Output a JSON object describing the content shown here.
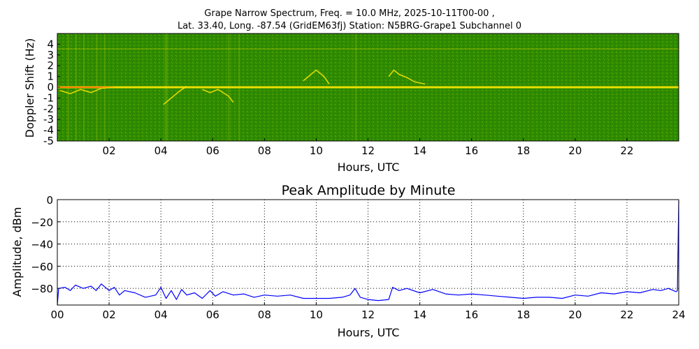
{
  "chart_data": [
    {
      "type": "heatmap",
      "title_line1": "Grape Narrow Spectrum, Freq. = 10.0 MHz, 2025-10-11T00-00 ,",
      "title_line2": "Lat.  33.40, Long. -87.54 (GridEM63fj) Station: N5BRG-Grape1 Subchannel 0",
      "xlabel": "Hours, UTC",
      "ylabel": "Doppler Shift (Hz)",
      "xlim": [
        0,
        24
      ],
      "ylim": [
        -5,
        5
      ],
      "x_ticks": [
        2,
        4,
        6,
        8,
        10,
        12,
        14,
        16,
        18,
        20,
        22
      ],
      "x_tick_labels": [
        "02",
        "04",
        "06",
        "08",
        "10",
        "12",
        "14",
        "16",
        "18",
        "20",
        "22"
      ],
      "y_ticks": [
        4,
        3,
        2,
        1,
        0,
        -1,
        -2,
        -3,
        -4,
        -5
      ],
      "y_tick_labels": [
        "4",
        "3",
        "2",
        "1",
        "0",
        "-1",
        "-2",
        "-3",
        "-4",
        "-5"
      ],
      "colors": {
        "background": "#2e8a00",
        "mid": "#6aaa00",
        "trace": "#ffe600",
        "peak": "#ff6a00"
      },
      "carrier_hz": 0,
      "traces": [
        {
          "x": [
            9.5,
            9.8,
            10.0,
            10.3,
            10.5
          ],
          "y": [
            0.6,
            1.2,
            1.6,
            1.0,
            0.3
          ]
        },
        {
          "x": [
            12.8,
            13.0,
            13.2,
            13.5,
            13.8,
            14.2
          ],
          "y": [
            1.0,
            1.6,
            1.2,
            0.9,
            0.5,
            0.3
          ]
        },
        {
          "x": [
            4.1,
            4.4,
            4.7,
            5.0
          ],
          "y": [
            -1.6,
            -1.0,
            -0.4,
            0.1
          ]
        },
        {
          "x": [
            5.6,
            5.9,
            6.2,
            6.6,
            6.8
          ],
          "y": [
            -0.2,
            -0.5,
            -0.2,
            -0.8,
            -1.4
          ]
        },
        {
          "x": [
            0.1,
            0.5,
            0.9,
            1.3,
            1.7,
            2.2
          ],
          "y": [
            -0.3,
            -0.6,
            -0.2,
            -0.5,
            -0.1,
            0.0
          ]
        }
      ]
    },
    {
      "type": "line",
      "title": "Peak Amplitude by Minute",
      "xlabel": "Hours, UTC",
      "ylabel": "Amplitude, dBm",
      "xlim": [
        0,
        24
      ],
      "ylim": [
        -95,
        0
      ],
      "x_ticks": [
        0,
        2,
        4,
        6,
        8,
        10,
        12,
        14,
        16,
        18,
        20,
        22,
        24
      ],
      "x_tick_labels": [
        "00",
        "02",
        "04",
        "06",
        "08",
        "10",
        "12",
        "14",
        "16",
        "18",
        "20",
        "22",
        "24"
      ],
      "y_ticks": [
        0,
        -20,
        -40,
        -60,
        -80
      ],
      "y_tick_labels": [
        "0",
        "−20",
        "−40",
        "−60",
        "−80"
      ],
      "grid": true,
      "color": "#0000ff",
      "series": [
        {
          "x": [
            0,
            0.05,
            0.3,
            0.5,
            0.7,
            1.0,
            1.3,
            1.5,
            1.7,
            2.0,
            2.2,
            2.4,
            2.6,
            3.0,
            3.4,
            3.8,
            4.0,
            4.2,
            4.4,
            4.6,
            4.8,
            5.0,
            5.3,
            5.6,
            5.9,
            6.1,
            6.4,
            6.8,
            7.2,
            7.6,
            8.0,
            8.5,
            9.0,
            9.5,
            10.0,
            10.5,
            11.0,
            11.3,
            11.5,
            11.7,
            12.0,
            12.4,
            12.8,
            12.95,
            13.2,
            13.5,
            14.0,
            14.5,
            15.0,
            15.5,
            16.0,
            16.5,
            17.0,
            17.5,
            18.0,
            18.5,
            19.0,
            19.5,
            20.0,
            20.5,
            21.0,
            21.5,
            22.0,
            22.5,
            23.0,
            23.3,
            23.6,
            23.9,
            23.95,
            24.0
          ],
          "y": [
            -95,
            -80,
            -79,
            -82,
            -77,
            -80,
            -78,
            -82,
            -76,
            -82,
            -79,
            -86,
            -82,
            -84,
            -88,
            -86,
            -79,
            -89,
            -82,
            -90,
            -81,
            -86,
            -84,
            -89,
            -82,
            -87,
            -83,
            -86,
            -85,
            -88,
            -86,
            -87,
            -86,
            -89,
            -89,
            -89,
            -88,
            -86,
            -80,
            -88,
            -90,
            -91,
            -90,
            -79,
            -82,
            -80,
            -84,
            -81,
            -85,
            -86,
            -85,
            -86,
            -87,
            -88,
            -89,
            -88,
            -88,
            -89,
            -86,
            -87,
            -84,
            -85,
            -83,
            -84,
            -81,
            -82,
            -80,
            -83,
            -82,
            -1
          ]
        }
      ]
    }
  ]
}
